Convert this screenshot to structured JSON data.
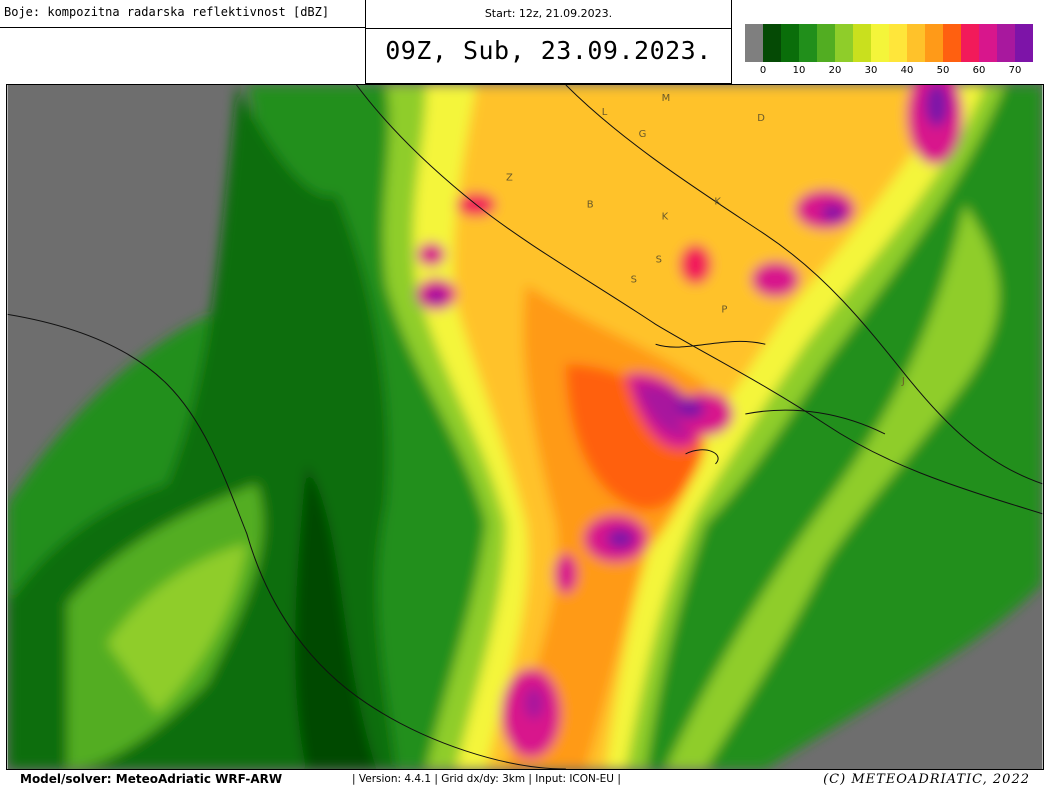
{
  "header": {
    "label": "Boje: kompozitna radarska reflektivnost [dBZ]",
    "start": "Start: 12z, 21.09.2023.",
    "title": "09Z, Sub, 23.09.2023."
  },
  "colorbar": {
    "colors": [
      "#7f7f7f",
      "#054a05",
      "#0a6e0a",
      "#218f1b",
      "#52ad22",
      "#8fcd2a",
      "#c9e01e",
      "#f4f53a",
      "#ffe63a",
      "#ffc22a",
      "#ff9a18",
      "#ff6010",
      "#f21a5a",
      "#d8168c",
      "#a8189e",
      "#7d14a8"
    ],
    "ticks": [
      0,
      10,
      20,
      30,
      40,
      50,
      60,
      70
    ]
  },
  "map_labels": [
    "M",
    "L",
    "G",
    "D",
    "Z",
    "B",
    "K",
    "K",
    "S",
    "S",
    "P",
    "J"
  ],
  "footer": {
    "model": "Model/solver: MeteoAdriatic WRF-ARW",
    "info": "| Version: 4.4.1 | Grid dx/dy: 3km | Input: ICON-EU |",
    "copyright": "(C) METEOADRIATIC, 2022"
  }
}
